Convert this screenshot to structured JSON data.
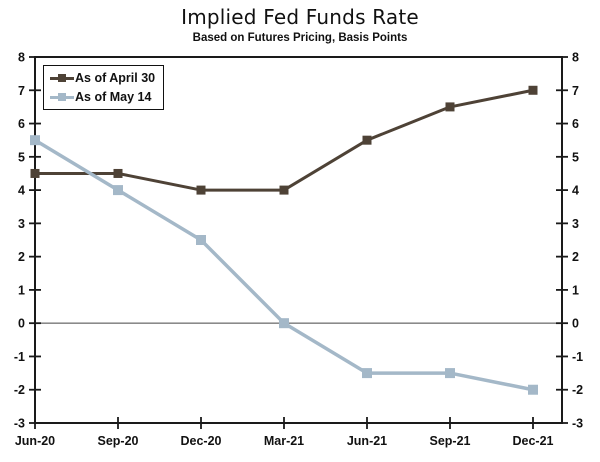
{
  "header": {
    "title": "Implied Fed Funds Rate",
    "subtitle": "Based on Futures Pricing, Basis Points"
  },
  "chart_data": {
    "type": "line",
    "title": "Implied Fed Funds Rate",
    "subtitle": "Based on Futures Pricing, Basis Points",
    "categories": [
      "Jun-20",
      "Sep-20",
      "Dec-20",
      "Mar-21",
      "Jun-21",
      "Sep-21",
      "Dec-21"
    ],
    "series": [
      {
        "name": "As of April 30",
        "color": "#4e4236",
        "line_width": 3,
        "marker": "square",
        "marker_size": 9,
        "values": [
          4.5,
          4.5,
          4.0,
          4.0,
          5.5,
          6.5,
          7.0
        ]
      },
      {
        "name": "As of May 14",
        "color": "#a4b8c8",
        "line_width": 3.5,
        "marker": "square",
        "marker_size": 10,
        "values": [
          5.5,
          4.0,
          2.5,
          0.0,
          -1.5,
          -1.5,
          -2.0
        ]
      }
    ],
    "xlabel": "",
    "ylabel": "",
    "ylim": [
      -3,
      8
    ],
    "yticks": [
      -3,
      -2,
      -1,
      0,
      1,
      2,
      3,
      4,
      5,
      6,
      7,
      8
    ],
    "y_axis_sides": "both",
    "tick_style": "cross",
    "grid": false,
    "zero_line": true,
    "legend_position": "top-left",
    "colors": {
      "axis": "#1a1a1a",
      "zero_line": "#444444",
      "text": "#111111",
      "background": "#ffffff"
    }
  }
}
